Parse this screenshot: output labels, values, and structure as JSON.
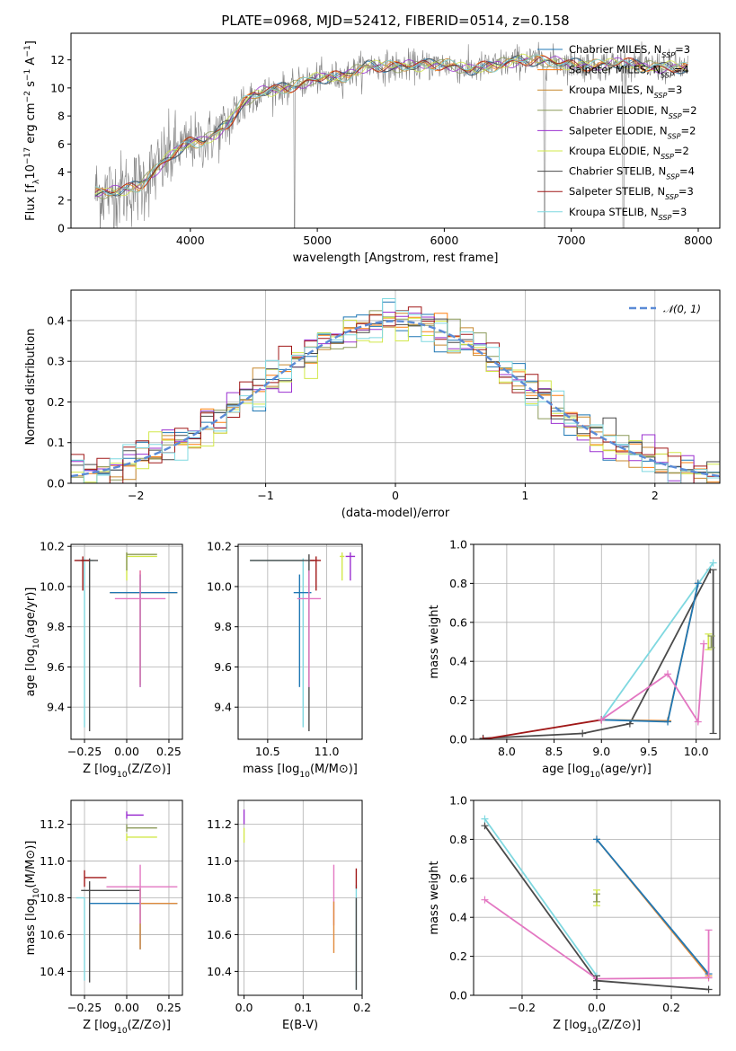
{
  "colors": {
    "Chabrier MILES": "#1f77b4",
    "Salpeter MILES": "#ff7f0e",
    "Kroupa MILES": "#c7882f",
    "Chabrier ELODIE": "#8c9a5a",
    "Salpeter ELODIE": "#9b30d0",
    "Kroupa ELODIE": "#d2e84a",
    "Chabrier STELIB": "#4a4a4a",
    "Salpeter STELIB": "#a01818",
    "Kroupa STELIB": "#7fd8e0",
    "pink": "#e377c2",
    "orange": "#e08a3a",
    "data": "#808080",
    "normal": "#5b8bd6"
  },
  "chart_data": [
    {
      "type": "line",
      "title": "PLATE=0968, MJD=52412, FIBERID=0514, z=0.158",
      "xlabel": "wavelength [Angstrom, rest frame]",
      "ylabel": "Flux [f_λ10^-17 erg cm^-2 s^-1 A^-1]",
      "xlim": [
        3060,
        8170
      ],
      "ylim": [
        0,
        13.9
      ],
      "xticks": [
        "4000",
        "5000",
        "6000",
        "7000",
        "8000"
      ],
      "yticks": [
        "0",
        "2",
        "4",
        "6",
        "8",
        "10",
        "12"
      ],
      "grid": false,
      "legend_position": "top-right",
      "legend": [
        "Chabrier MILES, N_SSP=3",
        "Salpeter MILES, N_SSP=4",
        "Kroupa MILES, N_SSP=3",
        "Chabrier ELODIE, N_SSP=2",
        "Salpeter ELODIE, N_SSP=2",
        "Kroupa ELODIE, N_SSP=2",
        "Chabrier STELIB, N_SSP=4",
        "Salpeter STELIB, N_SSP=3",
        "Kroupa STELIB, N_SSP=3"
      ],
      "legend_colors": [
        "Chabrier MILES",
        "Salpeter MILES",
        "Kroupa MILES",
        "Chabrier ELODIE",
        "Salpeter ELODIE",
        "Kroupa ELODIE",
        "Chabrier STELIB",
        "Salpeter STELIB",
        "Kroupa STELIB"
      ],
      "continuum": [
        [
          3250,
          2.5
        ],
        [
          3400,
          2.6
        ],
        [
          3500,
          2.8
        ],
        [
          3600,
          3.0
        ],
        [
          3700,
          3.9
        ],
        [
          3800,
          4.8
        ],
        [
          3900,
          5.6
        ],
        [
          4000,
          6.1
        ],
        [
          4100,
          6.2
        ],
        [
          4200,
          6.7
        ],
        [
          4300,
          7.5
        ],
        [
          4400,
          8.8
        ],
        [
          4500,
          9.5
        ],
        [
          4600,
          9.8
        ],
        [
          4700,
          9.9
        ],
        [
          4800,
          10.1
        ],
        [
          4900,
          10.4
        ],
        [
          5000,
          10.7
        ],
        [
          5200,
          10.8
        ],
        [
          5400,
          11.6
        ],
        [
          5600,
          11.5
        ],
        [
          5800,
          11.6
        ],
        [
          6000,
          11.7
        ],
        [
          6200,
          11.3
        ],
        [
          6400,
          11.6
        ],
        [
          6600,
          12.0
        ],
        [
          6800,
          11.9
        ],
        [
          7000,
          11.7
        ],
        [
          7200,
          11.6
        ],
        [
          7400,
          11.8
        ],
        [
          7600,
          11.5
        ],
        [
          7800,
          11.5
        ],
        [
          7920,
          11.4
        ]
      ]
    },
    {
      "type": "histogram",
      "xlabel": "(data-model)/error",
      "ylabel": "Normed distribution",
      "xlim": [
        -2.5,
        2.5
      ],
      "ylim": [
        0,
        0.475
      ],
      "xticks": [
        "−2",
        "−1",
        "0",
        "1",
        "2"
      ],
      "yticks": [
        "0.0",
        "0.1",
        "0.2",
        "0.3",
        "0.4"
      ],
      "grid": true,
      "legend_position": "top-right",
      "legend": [
        "𝒩(0, 1)"
      ],
      "bin_width": 0.1,
      "bin_start": -2.5,
      "models": [
        "Chabrier MILES",
        "Salpeter MILES",
        "Kroupa MILES",
        "Chabrier ELODIE",
        "Salpeter ELODIE",
        "Kroupa ELODIE",
        "Chabrier STELIB",
        "Salpeter STELIB",
        "Kroupa STELIB"
      ]
    },
    {
      "type": "errorbar",
      "xlabel": "Z [log10(Z/Z⊙)]",
      "ylabel": "age  [log10(age/yr)]",
      "xlim": [
        -0.33,
        0.33
      ],
      "ylim": [
        9.24,
        10.21
      ],
      "xticks": [
        "−0.25",
        "0.00",
        "0.25"
      ],
      "yticks": [
        "9.4",
        "9.6",
        "9.8",
        "10.0",
        "10.2"
      ],
      "grid": true,
      "points": [
        {
          "model": "Kroupa STELIB",
          "x": -0.25,
          "xerr": [
            0.05,
            0.05
          ],
          "y": 10.13,
          "yerr": [
            0.83,
            0.01
          ]
        },
        {
          "model": "Chabrier STELIB",
          "x": -0.22,
          "xerr": [
            0.05,
            0.05
          ],
          "y": 10.13,
          "yerr": [
            0.85,
            0.01
          ]
        },
        {
          "model": "Salpeter STELIB",
          "x": -0.26,
          "xerr": [
            0.05,
            0.04
          ],
          "y": 10.13,
          "yerr": [
            0.15,
            0.02
          ]
        },
        {
          "model": "Kroupa ELODIE",
          "x": 0.0,
          "xerr": [
            0.0,
            0.18
          ],
          "y": 10.15,
          "yerr": [
            0.12,
            0.02
          ]
        },
        {
          "model": "Chabrier ELODIE",
          "x": 0.0,
          "xerr": [
            0.0,
            0.18
          ],
          "y": 10.16,
          "yerr": [
            0.08,
            0.01
          ]
        },
        {
          "model": "Salpeter MILES",
          "x": 0.08,
          "xerr": [
            0.18,
            0.22
          ],
          "y": 9.97,
          "yerr": [
            0.46,
            0.11
          ]
        },
        {
          "model": "Chabrier MILES",
          "x": 0.08,
          "xerr": [
            0.18,
            0.22
          ],
          "y": 9.97,
          "yerr": [
            0.47,
            0.09
          ]
        },
        {
          "model": "pink",
          "x": 0.08,
          "xerr": [
            0.15,
            0.15
          ],
          "y": 9.94,
          "yerr": [
            0.44,
            0.14
          ]
        }
      ]
    },
    {
      "type": "errorbar",
      "xlabel": "mass [log10(M/M⊙)]",
      "ylabel": "",
      "xlim": [
        10.25,
        11.3
      ],
      "ylim": [
        9.24,
        10.21
      ],
      "xticks": [
        "10.5",
        "11.0"
      ],
      "yticks": [
        "9.4",
        "9.6",
        "9.8",
        "10.0",
        "10.2"
      ],
      "grid": true,
      "points": [
        {
          "model": "Kroupa STELIB",
          "x": 10.8,
          "xerr": [
            0.45,
            0.0
          ],
          "y": 10.13,
          "yerr": [
            0.83,
            0.01
          ]
        },
        {
          "model": "Chabrier STELIB",
          "x": 10.85,
          "xerr": [
            0.5,
            0.05
          ],
          "y": 10.13,
          "yerr": [
            0.85,
            0.03
          ]
        },
        {
          "model": "Salpeter STELIB",
          "x": 10.91,
          "xerr": [
            0.05,
            0.04
          ],
          "y": 10.13,
          "yerr": [
            0.15,
            0.02
          ]
        },
        {
          "model": "Kroupa ELODIE",
          "x": 11.13,
          "xerr": [
            0.02,
            0.02
          ],
          "y": 10.15,
          "yerr": [
            0.12,
            0.02
          ]
        },
        {
          "model": "Salpeter ELODIE",
          "x": 11.2,
          "xerr": [
            0.04,
            0.04
          ],
          "y": 10.15,
          "yerr": [
            0.12,
            0.02
          ]
        },
        {
          "model": "Chabrier MILES",
          "x": 10.77,
          "xerr": [
            0.05,
            0.1
          ],
          "y": 9.97,
          "yerr": [
            0.47,
            0.09
          ]
        },
        {
          "model": "pink",
          "x": 10.85,
          "xerr": [
            0.1,
            0.1
          ],
          "y": 9.94,
          "yerr": [
            0.44,
            0.14
          ]
        }
      ]
    },
    {
      "type": "line",
      "xlabel": "age  [log10(age/yr)]",
      "ylabel": "mass weight",
      "xlim": [
        7.65,
        10.25
      ],
      "ylim": [
        0,
        1.0
      ],
      "xticks": [
        "8.0",
        "8.5",
        "9.0",
        "9.5",
        "10.0"
      ],
      "yticks": [
        "0.0",
        "0.2",
        "0.4",
        "0.6",
        "0.8",
        "1.0"
      ],
      "grid": true,
      "series": [
        {
          "model": "Chabrier STELIB",
          "x": [
            7.75,
            8.8,
            9.3,
            10.15
          ],
          "y": [
            0.005,
            0.03,
            0.08,
            0.87
          ]
        },
        {
          "model": "Kroupa STELIB",
          "x": [
            9.0,
            10.18
          ],
          "y": [
            0.1,
            0.905
          ]
        },
        {
          "model": "orange",
          "x": [
            9.0,
            9.7,
            10.02
          ],
          "y": [
            0.1,
            0.095,
            0.8
          ]
        },
        {
          "model": "Chabrier MILES",
          "x": [
            9.0,
            9.7,
            10.02
          ],
          "y": [
            0.1,
            0.09,
            0.8
          ]
        },
        {
          "model": "Salpeter STELIB",
          "x": [
            7.75,
            9.0
          ],
          "y": [
            0.0,
            0.1
          ]
        },
        {
          "model": "pink",
          "x": [
            9.0,
            9.7,
            10.02,
            10.08
          ],
          "y": [
            0.1,
            0.335,
            0.09,
            0.49
          ]
        }
      ],
      "vbars": [
        {
          "model": "Chabrier STELIB",
          "x": 10.18,
          "y": [
            0.03,
            0.87
          ]
        },
        {
          "model": "Kroupa ELODIE",
          "x": 10.13,
          "y": [
            0.46,
            0.54
          ]
        },
        {
          "model": "Chabrier ELODIE",
          "x": 10.16,
          "y": [
            0.47,
            0.53
          ]
        }
      ]
    },
    {
      "type": "errorbar",
      "xlabel": "Z [log10(Z/Z⊙)]",
      "ylabel": "mass [log10(M/M⊙)]",
      "xlim": [
        -0.33,
        0.33
      ],
      "ylim": [
        10.27,
        11.33
      ],
      "xticks": [
        "−0.25",
        "0.00",
        "0.25"
      ],
      "yticks": [
        "10.4",
        "10.6",
        "10.8",
        "11.0",
        "11.2"
      ],
      "grid": true,
      "points": [
        {
          "model": "Kroupa STELIB",
          "x": -0.25,
          "xerr": [
            0.05,
            0.0
          ],
          "y": 10.8,
          "yerr": [
            0.45,
            0.0
          ]
        },
        {
          "model": "Chabrier STELIB",
          "x": -0.22,
          "xerr": [
            0.05,
            0.3
          ],
          "y": 10.84,
          "yerr": [
            0.5,
            0.05
          ]
        },
        {
          "model": "Salpeter STELIB",
          "x": -0.25,
          "xerr": [
            0.0,
            0.13
          ],
          "y": 10.91,
          "yerr": [
            0.05,
            0.04
          ]
        },
        {
          "model": "Kroupa ELODIE",
          "x": 0.0,
          "xerr": [
            0.0,
            0.18
          ],
          "y": 11.13,
          "yerr": [
            0.02,
            0.02
          ]
        },
        {
          "model": "Chabrier ELODIE",
          "x": 0.0,
          "xerr": [
            0.0,
            0.18
          ],
          "y": 11.18,
          "yerr": [
            0.02,
            0.02
          ]
        },
        {
          "model": "Salpeter ELODIE",
          "x": 0.0,
          "xerr": [
            0.0,
            0.1
          ],
          "y": 11.25,
          "yerr": [
            0.02,
            0.02
          ]
        },
        {
          "model": "Chabrier MILES",
          "x": 0.08,
          "xerr": [
            0.3,
            0.22
          ],
          "y": 10.77,
          "yerr": [
            0.25,
            0.08
          ]
        },
        {
          "model": "orange",
          "x": 0.08,
          "xerr": [
            0.0,
            0.22
          ],
          "y": 10.77,
          "yerr": [
            0.25,
            0.08
          ]
        },
        {
          "model": "pink",
          "x": 0.08,
          "xerr": [
            0.2,
            0.22
          ],
          "y": 10.86,
          "yerr": [
            0.2,
            0.12
          ]
        }
      ]
    },
    {
      "type": "errorbar",
      "xlabel": "E(B-V)",
      "ylabel": "",
      "xlim": [
        -0.01,
        0.2
      ],
      "ylim": [
        10.27,
        11.33
      ],
      "xticks": [
        "0.0",
        "0.1",
        "0.2"
      ],
      "yticks": [
        "10.4",
        "10.6",
        "10.8",
        "11.0",
        "11.2"
      ],
      "grid": true,
      "points": [
        {
          "model": "Salpeter ELODIE",
          "x": 0.0,
          "y": 11.25,
          "yerr": [
            0.05,
            0.03
          ]
        },
        {
          "model": "Kroupa ELODIE",
          "x": 0.0,
          "y": 11.15,
          "yerr": [
            0.05,
            0.03
          ]
        },
        {
          "model": "pink",
          "x": 0.152,
          "y": 10.85,
          "yerr": [
            0.2,
            0.13
          ]
        },
        {
          "model": "orange",
          "x": 0.152,
          "y": 10.7,
          "yerr": [
            0.2,
            0.08
          ]
        },
        {
          "model": "Kroupa STELIB",
          "x": 0.19,
          "y": 10.6,
          "yerr": [
            0.3,
            0.27
          ]
        },
        {
          "model": "Salpeter STELIB",
          "x": 0.19,
          "y": 10.9,
          "yerr": [
            0.05,
            0.06
          ]
        },
        {
          "model": "Chabrier STELIB",
          "x": 0.19,
          "y": 10.6,
          "yerr": [
            0.3,
            0.2
          ]
        }
      ]
    },
    {
      "type": "line",
      "xlabel": "Z [log10(Z/Z⊙)]",
      "ylabel": "mass weight",
      "xlim": [
        -0.33,
        0.33
      ],
      "ylim": [
        0,
        1.0
      ],
      "xticks": [
        "−0.2",
        "0.0",
        "0.2"
      ],
      "yticks": [
        "0.0",
        "0.2",
        "0.4",
        "0.6",
        "0.8",
        "1.0"
      ],
      "grid": true,
      "series": [
        {
          "model": "Chabrier STELIB",
          "x": [
            -0.3,
            0.0,
            0.3
          ],
          "y": [
            0.87,
            0.075,
            0.03
          ]
        },
        {
          "model": "Kroupa STELIB",
          "x": [
            -0.3,
            0.0
          ],
          "y": [
            0.905,
            0.1
          ]
        },
        {
          "model": "pink",
          "x": [
            -0.3,
            0.0,
            0.3
          ],
          "y": [
            0.49,
            0.085,
            0.09
          ]
        },
        {
          "model": "orange",
          "x": [
            0.0,
            0.3
          ],
          "y": [
            0.8,
            0.1
          ]
        },
        {
          "model": "Chabrier MILES",
          "x": [
            0.0,
            0.3
          ],
          "y": [
            0.8,
            0.11
          ]
        }
      ],
      "vbars": [
        {
          "model": "Chabrier STELIB",
          "x": 0.0,
          "y": [
            0.03,
            0.1
          ]
        },
        {
          "model": "pink",
          "x": 0.3,
          "y": [
            0.09,
            0.335
          ]
        },
        {
          "model": "Kroupa ELODIE",
          "x": 0.0,
          "y": [
            0.46,
            0.54
          ]
        },
        {
          "model": "Chabrier ELODIE",
          "x": 0.0,
          "y": [
            0.48,
            0.52
          ]
        }
      ]
    }
  ]
}
